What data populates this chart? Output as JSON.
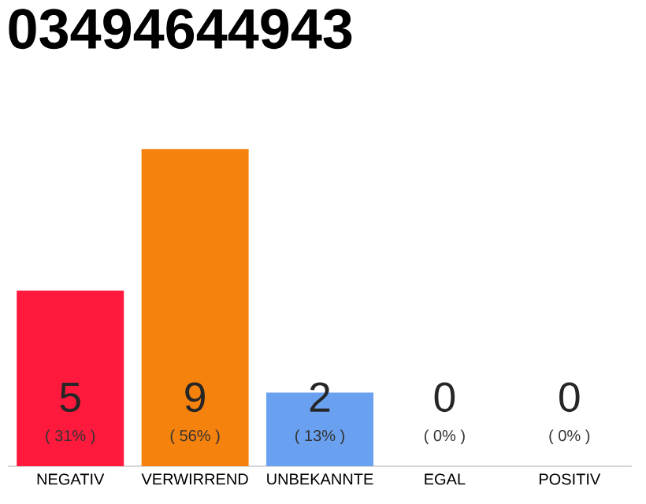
{
  "chart_data": {
    "type": "bar",
    "title": "03494644943",
    "categories": [
      "NEGATIV",
      "VERWIRREND",
      "UNBEKANNTE",
      "EGAL",
      "POSITIV"
    ],
    "values": [
      31,
      56,
      13,
      0,
      0
    ],
    "colors": [
      "#ff1a3d",
      "#f5820d",
      "#6aa0f0",
      "#9e9e9e",
      "#9e9e9e"
    ],
    "value_labels": [
      "( 31% )",
      "( 56% )",
      "( 13% )",
      "( 0% )",
      "( 0% )"
    ],
    "annotations": [
      "5",
      "9",
      "2",
      "0",
      "0"
    ],
    "tick_labels": "x"
  }
}
